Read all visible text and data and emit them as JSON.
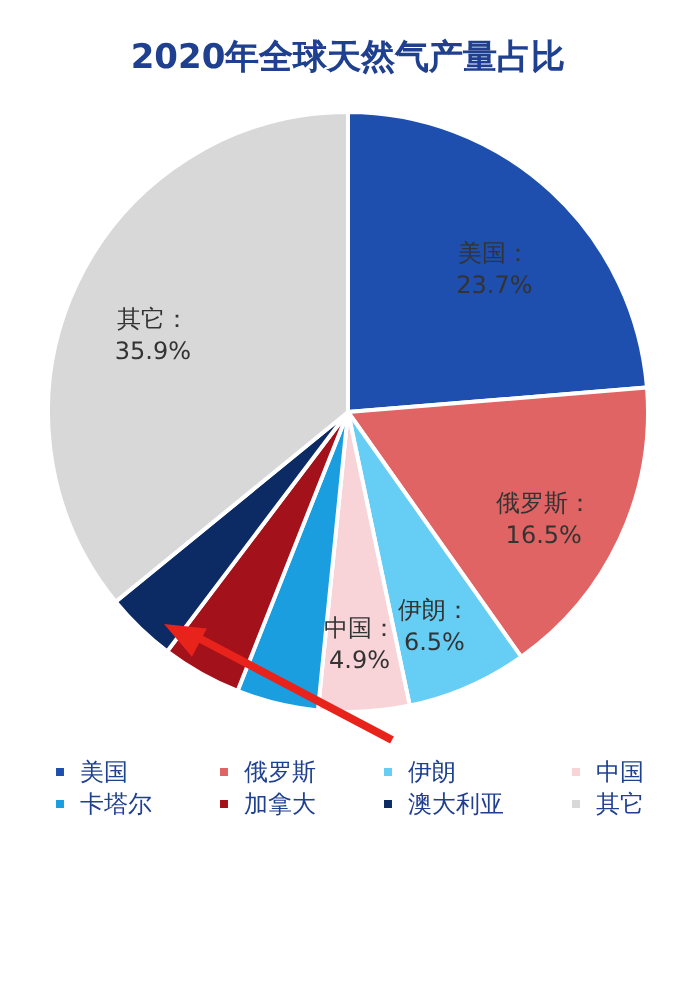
{
  "chart_data": {
    "type": "pie",
    "title": "2020年全球天然气产量占比",
    "categories": [
      "美国",
      "俄罗斯",
      "伊朗",
      "中国",
      "卡塔尔",
      "加拿大",
      "澳大利亚",
      "其它"
    ],
    "values": [
      23.7,
      16.5,
      6.5,
      4.9,
      4.4,
      4.3,
      3.8,
      35.9
    ],
    "colors": [
      "#1f4fae",
      "#e06464",
      "#66cdf5",
      "#f8d3d8",
      "#1a9ee0",
      "#a3111a",
      "#0c2a63",
      "#d8d8d8"
    ],
    "value_labels": [
      "美国：\n23.7%",
      "俄罗斯：\n16.5%",
      "伊朗：\n6.5%",
      "中国：\n4.9%",
      null,
      null,
      null,
      "其它：\n35.9%"
    ],
    "legend": "bottom"
  }
}
